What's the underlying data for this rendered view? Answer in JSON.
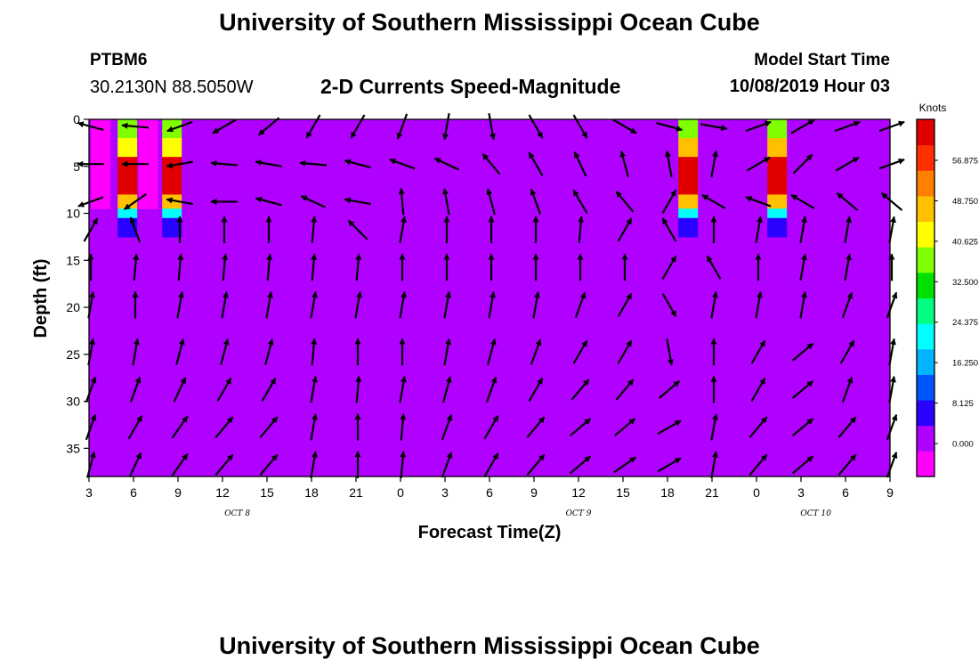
{
  "header": {
    "title": "University of Southern Mississippi Ocean Cube",
    "station_id": "PTBM6",
    "coordinates": "30.2130N 88.5050W",
    "subtitle": "2-D Currents Speed-Magnitude",
    "model_start_label": "Model Start Time",
    "model_start_value": "10/08/2019 Hour 03"
  },
  "footer": {
    "title": "University of Southern Mississippi Ocean Cube"
  },
  "chart_data": {
    "type": "heatmap",
    "title": "2-D Currents Speed-Magnitude",
    "xlabel": "Forecast Time(Z)",
    "ylabel": "Depth (ft)",
    "x_tick_labels": [
      "3",
      "6",
      "9",
      "12",
      "15",
      "18",
      "21",
      "0",
      "3",
      "6",
      "9",
      "12",
      "15",
      "18",
      "21",
      "0",
      "3",
      "6",
      "9"
    ],
    "x_forecast_hour_range": [
      0,
      54
    ],
    "date_labels": [
      {
        "label": "OCT 8",
        "forecast_hour": 10
      },
      {
        "label": "OCT 9",
        "forecast_hour": 33
      },
      {
        "label": "OCT 10",
        "forecast_hour": 49
      }
    ],
    "y_ticks": [
      0,
      5,
      10,
      15,
      20,
      25,
      30,
      35
    ],
    "ylim": [
      0,
      38
    ],
    "y_inverted": true,
    "background_speed_knots": 2,
    "colorbar": {
      "title": "Knots",
      "labels": [
        "56.875",
        "48.750",
        "40.625",
        "32.500",
        "24.375",
        "16.250",
        "8.125",
        "0.000"
      ],
      "colors": [
        "#ff00ff",
        "#b000ff",
        "#2a00ff",
        "#0055ff",
        "#00b4ff",
        "#00ffff",
        "#00ff80",
        "#00e000",
        "#80ff00",
        "#ffff00",
        "#ffc000",
        "#ff8000",
        "#ff3000",
        "#e00000"
      ]
    },
    "speed_columns": [
      {
        "forecast_hour": 0.0,
        "depths_ft": [
          1,
          3,
          5,
          7,
          9
        ],
        "speeds_knots": [
          -6,
          -6,
          -6,
          -6,
          -6
        ]
      },
      {
        "forecast_hour": 1.8,
        "depths_ft": [
          1,
          3,
          5,
          7,
          9,
          10,
          11,
          12
        ],
        "speeds_knots": [
          36,
          44,
          62,
          62,
          46,
          18,
          6,
          4
        ]
      },
      {
        "forecast_hour": 3.2,
        "depths_ft": [
          1,
          3,
          5,
          7,
          9
        ],
        "speeds_knots": [
          -6,
          -6,
          -6,
          -6,
          -6
        ]
      },
      {
        "forecast_hour": 4.8,
        "depths_ft": [
          1,
          3,
          5,
          7,
          9,
          10,
          11,
          12
        ],
        "speeds_knots": [
          36,
          44,
          62,
          62,
          46,
          18,
          6,
          4
        ]
      },
      {
        "forecast_hour": 39.6,
        "depths_ft": [
          1,
          3,
          5,
          7,
          9,
          10,
          11,
          12
        ],
        "speeds_knots": [
          36,
          48,
          62,
          62,
          46,
          18,
          6,
          4
        ]
      },
      {
        "forecast_hour": 45.6,
        "depths_ft": [
          1,
          3,
          5,
          7,
          9,
          10,
          11,
          12
        ],
        "speeds_knots": [
          36,
          48,
          62,
          62,
          46,
          18,
          6,
          4
        ]
      }
    ],
    "vector_columns_forecast_hours": [
      0,
      3,
      6,
      9,
      12,
      15,
      18,
      21,
      24,
      27,
      30,
      33,
      36,
      39,
      42,
      45,
      48,
      51,
      54
    ],
    "vector_depths_ft": [
      0,
      4,
      8,
      11,
      15,
      19,
      24,
      28,
      32,
      36
    ],
    "vector_direction_east_deg": [
      [
        165,
        175,
        200,
        210,
        220,
        240,
        240,
        250,
        260,
        280,
        300,
        300,
        330,
        345,
        350,
        20,
        30,
        20,
        20
      ],
      [
        180,
        180,
        190,
        175,
        170,
        175,
        165,
        160,
        155,
        130,
        120,
        115,
        105,
        100,
        80,
        30,
        45,
        30,
        20
      ],
      [
        200,
        215,
        170,
        180,
        165,
        155,
        170,
        95,
        100,
        105,
        110,
        120,
        130,
        60,
        150,
        160,
        150,
        140,
        140
      ],
      [
        60,
        110,
        90,
        90,
        90,
        85,
        135,
        80,
        90,
        90,
        90,
        85,
        60,
        120,
        90,
        80,
        80,
        80,
        80
      ],
      [
        90,
        85,
        85,
        85,
        85,
        85,
        85,
        90,
        90,
        90,
        90,
        90,
        90,
        60,
        120,
        90,
        80,
        80,
        90
      ],
      [
        80,
        90,
        80,
        80,
        80,
        80,
        80,
        80,
        80,
        80,
        80,
        70,
        60,
        300,
        80,
        80,
        80,
        70,
        70
      ],
      [
        80,
        80,
        75,
        75,
        75,
        85,
        90,
        90,
        80,
        75,
        70,
        60,
        60,
        280,
        90,
        60,
        40,
        60,
        80
      ],
      [
        70,
        70,
        65,
        60,
        60,
        80,
        85,
        80,
        75,
        70,
        60,
        50,
        50,
        40,
        90,
        60,
        40,
        70,
        80
      ],
      [
        70,
        60,
        55,
        50,
        50,
        80,
        90,
        85,
        70,
        60,
        50,
        40,
        40,
        30,
        80,
        50,
        40,
        50,
        70
      ],
      [
        75,
        65,
        55,
        50,
        50,
        80,
        90,
        85,
        70,
        60,
        50,
        40,
        35,
        30,
        80,
        50,
        40,
        50,
        70
      ]
    ]
  }
}
